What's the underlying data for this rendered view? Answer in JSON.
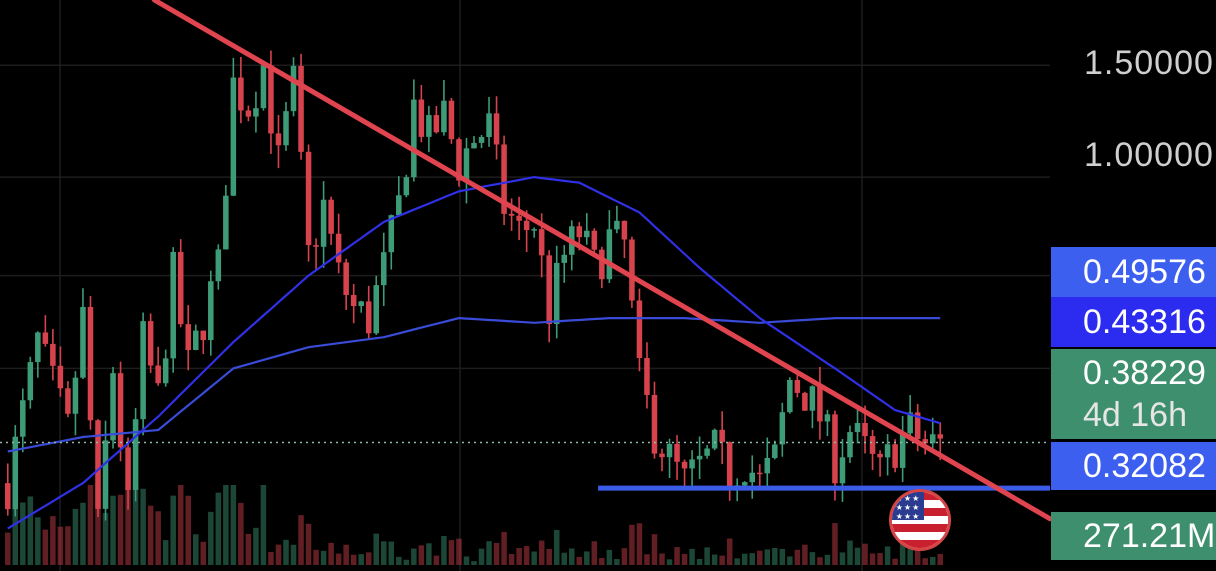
{
  "chart_data": {
    "type": "candlestick",
    "y_scale": "log",
    "ylim": [
      0.24,
      1.9
    ],
    "axis": {
      "tick_labels": [
        {
          "value": 1.5,
          "label": "1.50000"
        },
        {
          "value": 1.0,
          "label": "1.00000"
        }
      ]
    },
    "price_tags": [
      {
        "name": "resistance-tag",
        "label": "0.49576",
        "value": 0.49576,
        "color": "#3c5ff0"
      },
      {
        "name": "moving-average-tag",
        "label": "0.43316",
        "value": 0.43316,
        "color": "#2c2cf0"
      },
      {
        "name": "last-price-tag",
        "label": "0.38229",
        "value": 0.38229,
        "color": "#3d8f6e",
        "countdown": "4d 16h"
      },
      {
        "name": "support-tag",
        "label": "0.32082",
        "value": 0.32082,
        "color": "#3c5ff0"
      }
    ],
    "volume_tag": {
      "label": "271.21M",
      "color": "#3d8f6e"
    },
    "colors": {
      "up": "#3e9b78",
      "down": "#d7434d",
      "trendline": "#e0454f",
      "support_line": "#3b5ce8",
      "ma_fast": "#3030e6",
      "ma_slow": "#3a4bd8",
      "grid": "#1d1d1d"
    },
    "trendline": {
      "start": 1.9,
      "end": 0.29
    },
    "support_line": {
      "value": 0.324
    },
    "last_price_line": {
      "value": 0.38229
    },
    "close_path": [
      [
        0,
        0.33
      ],
      [
        4,
        0.55
      ],
      [
        8,
        0.4
      ],
      [
        10,
        0.6
      ],
      [
        12,
        0.28
      ],
      [
        14,
        0.5
      ],
      [
        16,
        0.3
      ],
      [
        18,
        0.55
      ],
      [
        20,
        0.45
      ],
      [
        22,
        0.7
      ],
      [
        24,
        0.5
      ],
      [
        26,
        0.6
      ],
      [
        28,
        0.72
      ],
      [
        30,
        1.4
      ],
      [
        32,
        1.3
      ],
      [
        34,
        1.5
      ],
      [
        36,
        1.05
      ],
      [
        38,
        1.4
      ],
      [
        40,
        0.75
      ],
      [
        42,
        0.9
      ],
      [
        44,
        0.7
      ],
      [
        46,
        0.62
      ],
      [
        48,
        0.6
      ],
      [
        50,
        0.72
      ],
      [
        52,
        0.9
      ],
      [
        54,
        1.3
      ],
      [
        56,
        1.15
      ],
      [
        58,
        1.25
      ],
      [
        60,
        1.05
      ],
      [
        62,
        1.15
      ],
      [
        64,
        1.2
      ],
      [
        66,
        0.9
      ],
      [
        68,
        0.82
      ],
      [
        70,
        0.85
      ],
      [
        72,
        0.62
      ],
      [
        74,
        0.75
      ],
      [
        76,
        0.82
      ],
      [
        78,
        0.72
      ],
      [
        80,
        0.8
      ],
      [
        82,
        0.78
      ],
      [
        84,
        0.48
      ],
      [
        86,
        0.4
      ],
      [
        88,
        0.36
      ],
      [
        90,
        0.33
      ],
      [
        92,
        0.35
      ],
      [
        94,
        0.37
      ],
      [
        96,
        0.34
      ],
      [
        98,
        0.36
      ],
      [
        100,
        0.33
      ],
      [
        102,
        0.36
      ],
      [
        104,
        0.48
      ],
      [
        106,
        0.46
      ],
      [
        108,
        0.42
      ],
      [
        110,
        0.36
      ],
      [
        112,
        0.4
      ],
      [
        114,
        0.37
      ],
      [
        116,
        0.34
      ],
      [
        118,
        0.38
      ],
      [
        120,
        0.4
      ],
      [
        122,
        0.38
      ],
      [
        124,
        0.38
      ]
    ],
    "ma_fast_path": [
      [
        0,
        0.28
      ],
      [
        10,
        0.33
      ],
      [
        20,
        0.42
      ],
      [
        30,
        0.55
      ],
      [
        40,
        0.7
      ],
      [
        50,
        0.85
      ],
      [
        60,
        0.95
      ],
      [
        70,
        1.0
      ],
      [
        76,
        0.98
      ],
      [
        84,
        0.88
      ],
      [
        92,
        0.72
      ],
      [
        100,
        0.6
      ],
      [
        110,
        0.5
      ],
      [
        118,
        0.43
      ],
      [
        124,
        0.41
      ]
    ],
    "ma_slow_path": [
      [
        0,
        0.37
      ],
      [
        10,
        0.39
      ],
      [
        20,
        0.4
      ],
      [
        30,
        0.5
      ],
      [
        40,
        0.54
      ],
      [
        50,
        0.56
      ],
      [
        60,
        0.6
      ],
      [
        70,
        0.59
      ],
      [
        80,
        0.6
      ],
      [
        90,
        0.6
      ],
      [
        100,
        0.59
      ],
      [
        110,
        0.6
      ],
      [
        124,
        0.6
      ]
    ]
  }
}
